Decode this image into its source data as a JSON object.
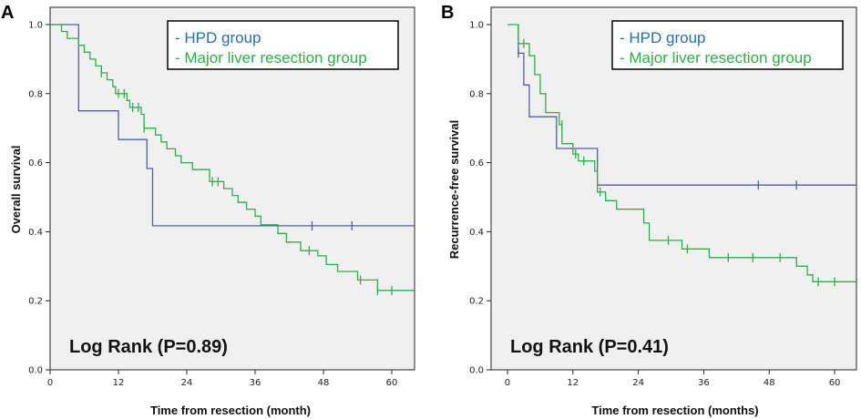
{
  "chart_data": [
    {
      "type": "line",
      "subtype": "kaplan-meier step",
      "panel_label": "A",
      "xlabel": "Time from resection (month)",
      "ylabel": "Overall survival",
      "xlim": [
        0,
        64
      ],
      "ylim": [
        0,
        1.05
      ],
      "xticks": [
        0,
        12,
        24,
        36,
        48,
        60
      ],
      "yticks": [
        0.0,
        0.2,
        0.4,
        0.6,
        0.8,
        1.0
      ],
      "ytick_labels": [
        "0.0",
        "0.2",
        "0.4",
        "0.6",
        "0.8",
        "1.0"
      ],
      "grid": false,
      "legend_position": "top-right",
      "annotation": "Log Rank (P=0.89)",
      "series": [
        {
          "name": "- HPD group",
          "color": "#4f5fa8",
          "legend_color": "#2b6ea8",
          "steps": [
            [
              0,
              1.0
            ],
            [
              5,
              1.0
            ],
            [
              5,
              0.917
            ],
            [
              5,
              0.917
            ],
            [
              5,
              0.75
            ],
            [
              12,
              0.75
            ],
            [
              12,
              0.667
            ],
            [
              17,
              0.667
            ],
            [
              17,
              0.583
            ],
            [
              18,
              0.583
            ],
            [
              18,
              0.417
            ],
            [
              64,
              0.417
            ]
          ],
          "censored": [
            [
              46,
              0.417
            ],
            [
              53,
              0.417
            ]
          ]
        },
        {
          "name": "- Major liver resection group",
          "color": "#2fae4a",
          "legend_color": "#2fae4a",
          "steps": [
            [
              0,
              1.0
            ],
            [
              2,
              1.0
            ],
            [
              2,
              0.98
            ],
            [
              3,
              0.98
            ],
            [
              3,
              0.96
            ],
            [
              5,
              0.96
            ],
            [
              5,
              0.94
            ],
            [
              6,
              0.94
            ],
            [
              6,
              0.92
            ],
            [
              7,
              0.92
            ],
            [
              7,
              0.9
            ],
            [
              8,
              0.9
            ],
            [
              8,
              0.88
            ],
            [
              9,
              0.88
            ],
            [
              9,
              0.86
            ],
            [
              10,
              0.86
            ],
            [
              10,
              0.84
            ],
            [
              11,
              0.84
            ],
            [
              11,
              0.82
            ],
            [
              11.5,
              0.82
            ],
            [
              11.5,
              0.8
            ],
            [
              13.5,
              0.8
            ],
            [
              13.5,
              0.78
            ],
            [
              14,
              0.78
            ],
            [
              14,
              0.76
            ],
            [
              16,
              0.76
            ],
            [
              16,
              0.74
            ],
            [
              16.5,
              0.74
            ],
            [
              16.5,
              0.7
            ],
            [
              18.5,
              0.7
            ],
            [
              18.5,
              0.68
            ],
            [
              19.5,
              0.68
            ],
            [
              19.5,
              0.66
            ],
            [
              20.5,
              0.66
            ],
            [
              20.5,
              0.64
            ],
            [
              22,
              0.64
            ],
            [
              22,
              0.62
            ],
            [
              23,
              0.62
            ],
            [
              23,
              0.6
            ],
            [
              25,
              0.6
            ],
            [
              25,
              0.58
            ],
            [
              28,
              0.58
            ],
            [
              28,
              0.545
            ],
            [
              30.5,
              0.545
            ],
            [
              30.5,
              0.525
            ],
            [
              32,
              0.525
            ],
            [
              32,
              0.505
            ],
            [
              33,
              0.505
            ],
            [
              33,
              0.485
            ],
            [
              34.5,
              0.485
            ],
            [
              34.5,
              0.465
            ],
            [
              36,
              0.465
            ],
            [
              36,
              0.445
            ],
            [
              37,
              0.445
            ],
            [
              37,
              0.42
            ],
            [
              40,
              0.42
            ],
            [
              40,
              0.395
            ],
            [
              41.5,
              0.395
            ],
            [
              41.5,
              0.37
            ],
            [
              44,
              0.37
            ],
            [
              44,
              0.345
            ],
            [
              47,
              0.345
            ],
            [
              47,
              0.33
            ],
            [
              48.5,
              0.33
            ],
            [
              48.5,
              0.305
            ],
            [
              50.5,
              0.305
            ],
            [
              50.5,
              0.285
            ],
            [
              54,
              0.285
            ],
            [
              54,
              0.26
            ],
            [
              57.5,
              0.26
            ],
            [
              57.5,
              0.23
            ],
            [
              64,
              0.23
            ]
          ],
          "censored": [
            [
              9,
              0.86
            ],
            [
              12,
              0.8
            ],
            [
              13,
              0.8
            ],
            [
              14.5,
              0.76
            ],
            [
              15.5,
              0.76
            ],
            [
              16.5,
              0.7
            ],
            [
              28.5,
              0.545
            ],
            [
              29.5,
              0.545
            ],
            [
              45.5,
              0.345
            ],
            [
              54.5,
              0.26
            ],
            [
              57.5,
              0.23
            ],
            [
              60,
              0.23
            ]
          ]
        }
      ]
    },
    {
      "type": "line",
      "subtype": "kaplan-meier step",
      "panel_label": "B",
      "xlabel": "Time from resection (months)",
      "ylabel": "Recurrence-free survival",
      "xlim": [
        -3,
        64
      ],
      "ylim": [
        0,
        1.05
      ],
      "xticks": [
        0,
        12,
        24,
        36,
        48,
        60
      ],
      "yticks": [
        0.0,
        0.2,
        0.4,
        0.6,
        0.8,
        1.0
      ],
      "ytick_labels": [
        "0.0",
        "0.2",
        "0.4",
        "0.6",
        "0.8",
        "1.0"
      ],
      "grid": false,
      "legend_position": "top-right",
      "annotation": "Log Rank (P=0.41)",
      "series": [
        {
          "name": "- HPD group",
          "color": "#4f5fa8",
          "legend_color": "#2b6ea8",
          "steps": [
            [
              2,
              1.0
            ],
            [
              2,
              0.917
            ],
            [
              3,
              0.917
            ],
            [
              3,
              0.825
            ],
            [
              4,
              0.825
            ],
            [
              4,
              0.733
            ],
            [
              9,
              0.733
            ],
            [
              9,
              0.641
            ],
            [
              16.5,
              0.641
            ],
            [
              16.5,
              0.535
            ],
            [
              64,
              0.535
            ]
          ],
          "censored": [
            [
              2,
              0.917
            ],
            [
              46,
              0.535
            ],
            [
              53,
              0.535
            ]
          ]
        },
        {
          "name": "- Major liver resection group",
          "color": "#2fae4a",
          "legend_color": "#2fae4a",
          "steps": [
            [
              0,
              1.0
            ],
            [
              2,
              1.0
            ],
            [
              2,
              0.945
            ],
            [
              4,
              0.945
            ],
            [
              4,
              0.91
            ],
            [
              5,
              0.91
            ],
            [
              5,
              0.855
            ],
            [
              6,
              0.855
            ],
            [
              6,
              0.8
            ],
            [
              7,
              0.8
            ],
            [
              7,
              0.745
            ],
            [
              9.5,
              0.745
            ],
            [
              9.5,
              0.71
            ],
            [
              10,
              0.71
            ],
            [
              10,
              0.655
            ],
            [
              12,
              0.655
            ],
            [
              12,
              0.625
            ],
            [
              13,
              0.625
            ],
            [
              13,
              0.605
            ],
            [
              16,
              0.605
            ],
            [
              16,
              0.575
            ],
            [
              16.5,
              0.575
            ],
            [
              16.5,
              0.515
            ],
            [
              18,
              0.515
            ],
            [
              18,
              0.49
            ],
            [
              20,
              0.49
            ],
            [
              20,
              0.465
            ],
            [
              25,
              0.465
            ],
            [
              25,
              0.425
            ],
            [
              26,
              0.425
            ],
            [
              26,
              0.375
            ],
            [
              32,
              0.375
            ],
            [
              32,
              0.35
            ],
            [
              37,
              0.35
            ],
            [
              37,
              0.325
            ],
            [
              53,
              0.325
            ],
            [
              53,
              0.3
            ],
            [
              55,
              0.3
            ],
            [
              55,
              0.275
            ],
            [
              56,
              0.275
            ],
            [
              56,
              0.255
            ],
            [
              64,
              0.255
            ]
          ],
          "censored": [
            [
              3,
              0.945
            ],
            [
              10,
              0.71
            ],
            [
              12.5,
              0.625
            ],
            [
              14,
              0.605
            ],
            [
              17,
              0.515
            ],
            [
              29.5,
              0.375
            ],
            [
              33,
              0.35
            ],
            [
              40.5,
              0.325
            ],
            [
              45,
              0.325
            ],
            [
              50,
              0.325
            ],
            [
              57,
              0.255
            ],
            [
              60,
              0.255
            ]
          ]
        }
      ]
    }
  ]
}
